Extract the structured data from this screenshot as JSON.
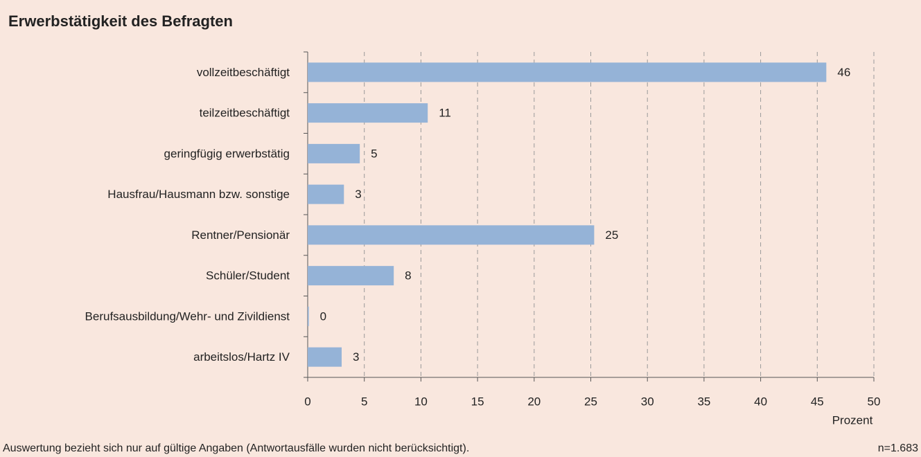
{
  "chart_data": {
    "type": "bar",
    "orientation": "horizontal",
    "title": "Erwerbstätigkeit des Befragten",
    "categories": [
      "vollzeitbeschäftigt",
      "teilzeitbeschäftigt",
      "geringfügig erwerbstätig",
      "Hausfrau/Hausmann bzw. sonstige",
      "Rentner/Pensionär",
      "Schüler/Student",
      "Berufsausbildung/Wehr- und Zivildienst",
      "arbeitslos/Hartz IV"
    ],
    "values": [
      45.8,
      10.6,
      4.6,
      3.2,
      25.3,
      7.6,
      0.1,
      3.0
    ],
    "value_labels": [
      "46",
      "11",
      "5",
      "3",
      "25",
      "8",
      "0",
      "3"
    ],
    "color": "#95b3d7",
    "xlabel": "Prozent",
    "xlim": [
      0,
      50
    ],
    "xticks": [
      0,
      5,
      10,
      15,
      20,
      25,
      30,
      35,
      40,
      45,
      50
    ],
    "grid": true,
    "note": "Auswertung bezieht sich nur auf gültige Angaben (Antwortausfälle wurden nicht berücksichtigt).",
    "sample": "n=1.683"
  }
}
